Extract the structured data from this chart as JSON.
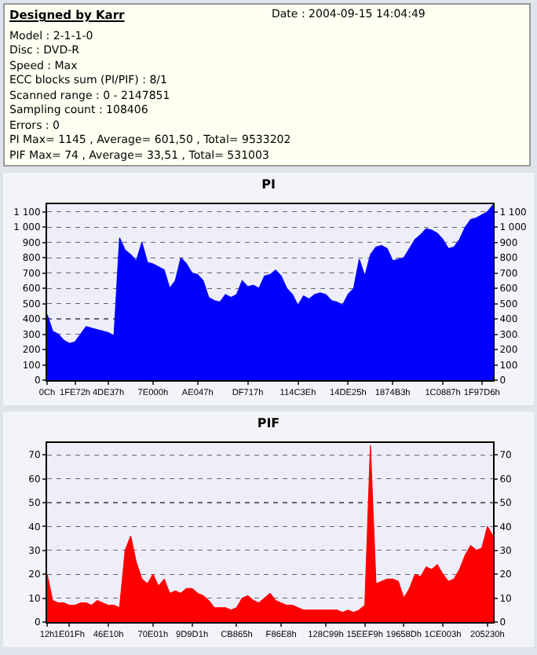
{
  "chart_data": [
    {
      "type": "other",
      "title": "Designed by Karr",
      "annotations": [
        "Date : 2004-09-15 14:04:49",
        "Model : 2-1-1-0",
        "Disc : DVD-R",
        "Speed : Max",
        "ECC blocks sum (PI/PIF) : 8/1",
        "Scanned range : 0 - 2147851",
        "Sampling count : 108406",
        "Errors : 0",
        "PI Max= 1145 , Average= 601,50 , Total= 9533202",
        "PIF Max= 74 , Average= 33,51 , Total= 531003"
      ]
    },
    {
      "type": "area",
      "title": "PI",
      "categories": [
        "0Ch",
        null,
        null,
        null,
        null,
        "1FE72h",
        null,
        null,
        null,
        null,
        null,
        "4DE37h",
        null,
        null,
        null,
        null,
        null,
        null,
        null,
        "7E000h",
        null,
        null,
        null,
        null,
        null,
        null,
        null,
        "AE047h",
        null,
        null,
        null,
        null,
        null,
        null,
        null,
        null,
        "DF717h",
        null,
        null,
        null,
        null,
        null,
        null,
        null,
        null,
        "114C3Eh",
        null,
        null,
        null,
        null,
        null,
        null,
        null,
        null,
        "14DE25h",
        null,
        null,
        null,
        null,
        null,
        null,
        null,
        "1874B3h",
        null,
        null,
        null,
        null,
        null,
        null,
        null,
        null,
        "1C0887h",
        null,
        null,
        null,
        null,
        null,
        null,
        "1F97D6h",
        null,
        null
      ],
      "series": [
        {
          "color": "#0000ff",
          "values": [
            430,
            320,
            300,
            260,
            240,
            250,
            300,
            350,
            340,
            330,
            320,
            310,
            290,
            930,
            850,
            820,
            780,
            900,
            770,
            760,
            740,
            720,
            600,
            650,
            800,
            760,
            700,
            690,
            650,
            540,
            520,
            510,
            560,
            540,
            560,
            650,
            610,
            620,
            600,
            680,
            690,
            720,
            680,
            600,
            560,
            490,
            550,
            530,
            560,
            570,
            560,
            520,
            510,
            490,
            560,
            600,
            790,
            680,
            820,
            870,
            880,
            860,
            780,
            790,
            800,
            860,
            920,
            950,
            990,
            980,
            960,
            920,
            860,
            870,
            920,
            1000,
            1050,
            1060,
            1080,
            1100,
            1145
          ]
        }
      ],
      "ylim": [
        0,
        1150
      ],
      "yticks": [
        0,
        100,
        200,
        300,
        400,
        500,
        600,
        700,
        800,
        900,
        {
          "value": 1000,
          "label": "1 000"
        },
        {
          "value": 1100,
          "label": "1 100"
        }
      ],
      "y2lim": [
        0,
        1150
      ],
      "y2ticks": [
        0,
        100,
        200,
        300,
        400,
        500,
        600,
        700,
        800,
        900,
        {
          "value": 1000,
          "label": "1 000"
        },
        {
          "value": 1100,
          "label": "1 100"
        }
      ],
      "grid": "y",
      "legend": false
    },
    {
      "type": "area",
      "title": "PIF",
      "categories": [
        "12h",
        null,
        null,
        null,
        "1E01Fh",
        null,
        null,
        null,
        null,
        null,
        null,
        "46E10h",
        null,
        null,
        null,
        null,
        null,
        null,
        null,
        "70E01h",
        null,
        null,
        null,
        null,
        null,
        null,
        "9D9D1h",
        null,
        null,
        null,
        null,
        null,
        null,
        null,
        "CB865h",
        null,
        null,
        null,
        null,
        null,
        null,
        null,
        "F86E8h",
        null,
        null,
        null,
        null,
        null,
        null,
        null,
        "128C99h",
        null,
        null,
        null,
        null,
        null,
        null,
        "15EEF9h",
        null,
        null,
        null,
        null,
        null,
        null,
        "19658Dh",
        null,
        null,
        null,
        null,
        null,
        null,
        "1CE003h",
        null,
        null,
        null,
        null,
        null,
        null,
        null,
        "205230h",
        null
      ],
      "series": [
        {
          "color": "#ff0000",
          "values": [
            20,
            9,
            8,
            8,
            7,
            7,
            8,
            8,
            7,
            9,
            8,
            7,
            7,
            6,
            30,
            36,
            25,
            18,
            16,
            20,
            15,
            18,
            12,
            13,
            12,
            14,
            14,
            12,
            11,
            9,
            6,
            6,
            6,
            5,
            6,
            10,
            11,
            9,
            8,
            10,
            12,
            9,
            8,
            7,
            7,
            6,
            5,
            5,
            5,
            5,
            5,
            5,
            5,
            4,
            5,
            4,
            5,
            7,
            74,
            16,
            17,
            18,
            18,
            17,
            10,
            14,
            20,
            19,
            23,
            22,
            24,
            20,
            17,
            18,
            22,
            28,
            32,
            30,
            31,
            40,
            36
          ]
        }
      ],
      "ylim": [
        0,
        75
      ],
      "yticks": [
        0,
        10,
        20,
        30,
        40,
        50,
        60,
        70
      ],
      "y2lim": [
        0,
        75
      ],
      "y2ticks": [
        0,
        10,
        20,
        30,
        40,
        50,
        60,
        70
      ],
      "grid": "y",
      "legend": false
    }
  ]
}
